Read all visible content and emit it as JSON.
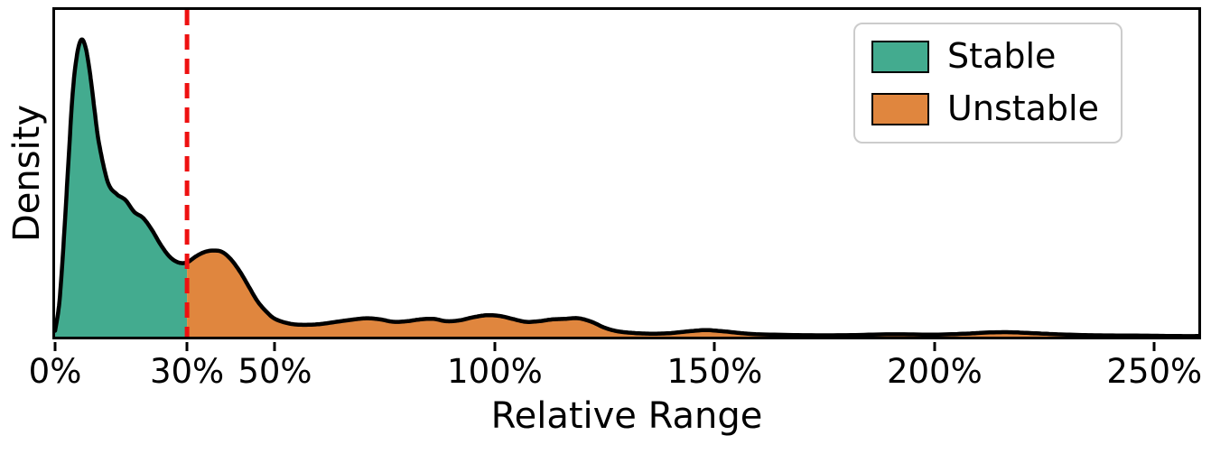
{
  "chart_data": {
    "type": "area",
    "subtype": "kde-density",
    "title": "",
    "xlabel": "Relative Range",
    "ylabel": "Density",
    "x_range": [
      0,
      260
    ],
    "y_max": 1.1,
    "grid": false,
    "legend_position": "top-right",
    "x_ticks": [
      {
        "value": 0,
        "label": "0%"
      },
      {
        "value": 30,
        "label": "30%"
      },
      {
        "value": 50,
        "label": "50%"
      },
      {
        "value": 100,
        "label": "100%"
      },
      {
        "value": 150,
        "label": "150%"
      },
      {
        "value": 200,
        "label": "200%"
      },
      {
        "value": 250,
        "label": "250%"
      }
    ],
    "threshold": {
      "value": 30,
      "color": "#ee1111",
      "style": "dashed"
    },
    "series": [
      {
        "name": "Stable",
        "color": "#43ab8f",
        "region": "x <= 30%"
      },
      {
        "name": "Unstable",
        "color": "#e0863e",
        "region": "x > 30%"
      }
    ],
    "curve_color": "#000000",
    "curve": {
      "y_units": "normalized density (peak = 1.0)",
      "x": [
        0,
        1,
        2,
        3,
        4,
        5,
        6,
        7,
        8,
        9,
        10,
        12,
        14,
        16,
        18,
        20,
        22,
        24,
        26,
        28,
        30,
        32,
        34,
        36,
        38,
        40,
        42,
        44,
        46,
        48,
        50,
        53,
        56,
        60,
        64,
        68,
        71,
        74,
        77,
        80,
        83,
        86,
        89,
        92,
        95,
        98,
        101,
        104,
        107,
        110,
        113,
        116,
        119,
        122,
        125,
        128,
        132,
        136,
        140,
        144,
        148,
        152,
        156,
        160,
        170,
        180,
        190,
        200,
        207,
        212,
        217,
        222,
        228,
        235,
        242,
        250,
        256,
        260
      ],
      "y": [
        0.02,
        0.12,
        0.33,
        0.58,
        0.82,
        0.95,
        1.0,
        0.97,
        0.88,
        0.76,
        0.65,
        0.52,
        0.48,
        0.46,
        0.42,
        0.4,
        0.36,
        0.31,
        0.27,
        0.25,
        0.25,
        0.27,
        0.285,
        0.29,
        0.285,
        0.26,
        0.22,
        0.17,
        0.12,
        0.085,
        0.06,
        0.045,
        0.04,
        0.042,
        0.05,
        0.058,
        0.062,
        0.058,
        0.05,
        0.052,
        0.058,
        0.06,
        0.052,
        0.055,
        0.065,
        0.072,
        0.07,
        0.06,
        0.05,
        0.052,
        0.058,
        0.06,
        0.062,
        0.05,
        0.03,
        0.018,
        0.012,
        0.01,
        0.012,
        0.018,
        0.022,
        0.018,
        0.012,
        0.008,
        0.005,
        0.005,
        0.008,
        0.007,
        0.01,
        0.014,
        0.015,
        0.012,
        0.008,
        0.005,
        0.004,
        0.003,
        0.002,
        0.002
      ]
    }
  }
}
